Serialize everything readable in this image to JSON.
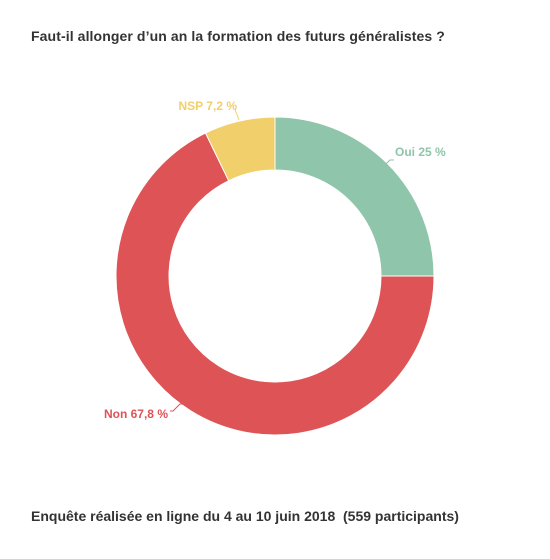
{
  "title": "Faut-il allonger d’un an la formation des futurs généralistes ?",
  "footer": "Enquête réalisée en ligne du 4 au 10 juin 2018  (559 participants)",
  "chart_data": {
    "type": "pie",
    "donut": true,
    "slices": [
      {
        "name": "Oui",
        "value": 25,
        "label": "Oui 25 %",
        "color": "#8fc5aa"
      },
      {
        "name": "Non",
        "value": 67.8,
        "label": "Non 67,8 %",
        "color": "#de5355"
      },
      {
        "name": "NSP",
        "value": 7.2,
        "label": "NSP 7,2 %",
        "color": "#f1cf6b"
      }
    ],
    "start": "top",
    "direction": "clockwise",
    "legend": "none"
  }
}
